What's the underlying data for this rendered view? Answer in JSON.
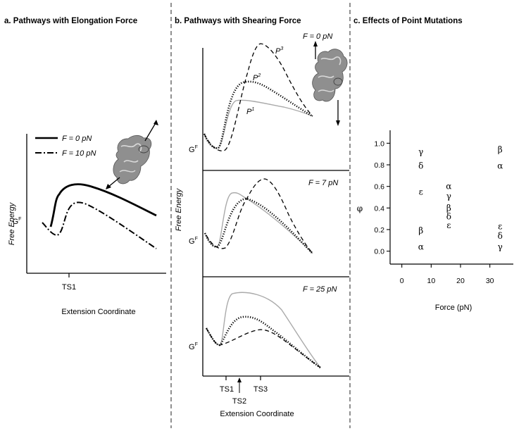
{
  "panels": {
    "a": {
      "title": "a. Pathways with Elongation Force",
      "ylabel": "Free Energy",
      "xlabel": "Extension Coordinate",
      "g_label": "G",
      "g_sup": "F",
      "ts_label": "TS1",
      "legend": [
        "F = 0 pN",
        "F = 10 pN"
      ]
    },
    "b": {
      "title": "b. Pathways with Shearing Force",
      "ylabel": "Free Energy",
      "xlabel": "Extension Coordinate",
      "g_label": "G",
      "g_sup": "F",
      "subpanels": [
        {
          "force_label": "F = 0 pN"
        },
        {
          "force_label": "F = 7 pN"
        },
        {
          "force_label": "F = 25 pN"
        }
      ],
      "pathway_labels": [
        {
          "base": "P",
          "sup": "1"
        },
        {
          "base": "P",
          "sup": "2"
        },
        {
          "base": "P",
          "sup": "3"
        }
      ],
      "ts_labels": [
        "TS1",
        "TS2",
        "TS3"
      ]
    },
    "c": {
      "title": "c. Effects of Point Mutations"
    }
  },
  "chart_data": [
    {
      "type": "line",
      "panel": "a",
      "title": "a. Pathways with Elongation Force",
      "xlabel": "Extension Coordinate",
      "ylabel": "Free Energy",
      "series": [
        {
          "name": "F = 0 pN",
          "style": "solid",
          "color": "#000000"
        },
        {
          "name": "F = 10 pN",
          "style": "dash-dot",
          "color": "#000000"
        }
      ]
    },
    {
      "type": "line",
      "panel": "b",
      "title": "b. Pathways with Shearing Force",
      "xlabel": "Extension Coordinate",
      "ylabel": "Free Energy",
      "subplots": [
        "F = 0 pN",
        "F = 7 pN",
        "F = 25 pN"
      ],
      "series": [
        {
          "name": "P1",
          "style": "solid",
          "color": "#aaaaaa"
        },
        {
          "name": "P2",
          "style": "dotted",
          "color": "#000000"
        },
        {
          "name": "P3",
          "style": "dashed",
          "color": "#000000"
        }
      ]
    },
    {
      "type": "scatter",
      "panel": "c",
      "title": "c. Effects of Point Mutations",
      "xlabel": "Force (pN)",
      "ylabel": "φ",
      "xlim": [
        -4,
        38
      ],
      "ylim": [
        -0.12,
        1.12
      ],
      "xticks": [
        0,
        10,
        20,
        30
      ],
      "yticks": [
        0.0,
        0.2,
        0.4,
        0.6,
        0.8,
        1.0
      ],
      "xtick_labels": [
        "0",
        "10",
        "20",
        "30"
      ],
      "ytick_labels": [
        "0.0",
        "0.2",
        "0.4",
        "0.6",
        "0.8",
        "1.0"
      ],
      "points": [
        {
          "label": "γ",
          "x": 6.5,
          "y": 0.92
        },
        {
          "label": "δ",
          "x": 6.5,
          "y": 0.79
        },
        {
          "label": "ε",
          "x": 6.5,
          "y": 0.55
        },
        {
          "label": "β",
          "x": 6.5,
          "y": 0.19
        },
        {
          "label": "α",
          "x": 6.5,
          "y": 0.04
        },
        {
          "label": "α",
          "x": 16,
          "y": 0.6
        },
        {
          "label": "γ",
          "x": 16,
          "y": 0.51
        },
        {
          "label": "β",
          "x": 16,
          "y": 0.4
        },
        {
          "label": "δ",
          "x": 16,
          "y": 0.32
        },
        {
          "label": "ε",
          "x": 16,
          "y": 0.24
        },
        {
          "label": "β",
          "x": 33.5,
          "y": 0.94
        },
        {
          "label": "α",
          "x": 33.5,
          "y": 0.79
        },
        {
          "label": "ε",
          "x": 33.5,
          "y": 0.23
        },
        {
          "label": "δ",
          "x": 33.5,
          "y": 0.14
        },
        {
          "label": "γ",
          "x": 33.5,
          "y": 0.04
        }
      ]
    }
  ]
}
